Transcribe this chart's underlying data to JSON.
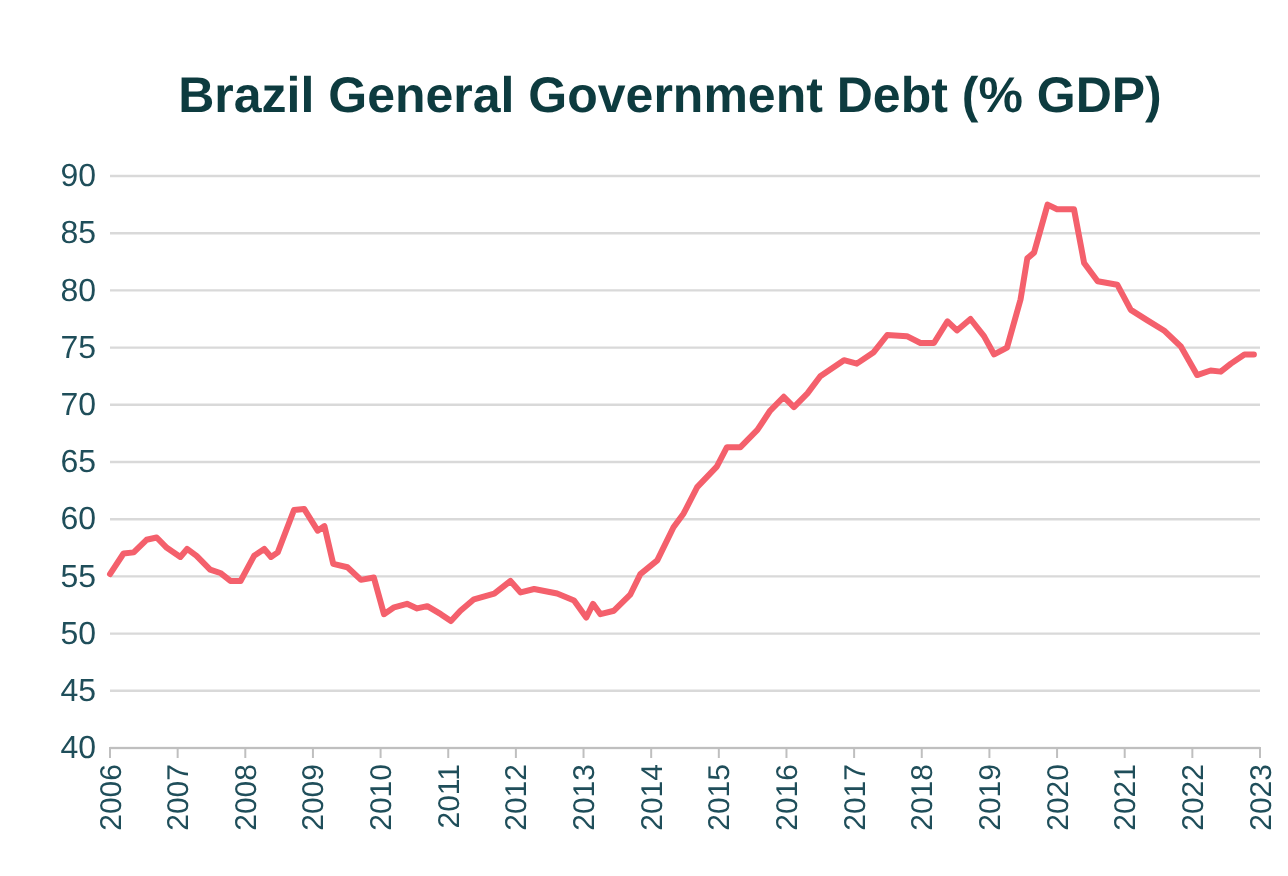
{
  "chart_data": {
    "type": "line",
    "title": "Brazil General Government Debt (% GDP)",
    "series": [
      {
        "color": "#f4606c",
        "x": [
          2006.0,
          2006.2,
          2006.35,
          2006.54,
          2006.69,
          2006.84,
          2007.04,
          2007.14,
          2007.28,
          2007.48,
          2007.63,
          2007.78,
          2007.93,
          2008.13,
          2008.28,
          2008.38,
          2008.48,
          2008.72,
          2008.87,
          2009.07,
          2009.17,
          2009.3,
          2009.51,
          2009.71,
          2009.9,
          2010.05,
          2010.2,
          2010.39,
          2010.54,
          2010.69,
          2010.89,
          2011.04,
          2011.18,
          2011.38,
          2011.68,
          2011.92,
          2012.07,
          2012.27,
          2012.61,
          2012.86,
          2013.04,
          2013.14,
          2013.25,
          2013.45,
          2013.69,
          2013.84,
          2014.09,
          2014.33,
          2014.48,
          2014.68,
          2014.97,
          2015.12,
          2015.32,
          2015.57,
          2015.76,
          2015.96,
          2016.11,
          2016.31,
          2016.5,
          2016.85,
          2017.04,
          2017.29,
          2017.49,
          2017.78,
          2017.98,
          2018.18,
          2018.38,
          2018.52,
          2018.72,
          2018.92,
          2019.07,
          2019.26,
          2019.46,
          2019.56,
          2019.66,
          2019.86,
          2020.0,
          2020.25,
          2020.4,
          2020.6,
          2020.89,
          2021.09,
          2021.33,
          2021.58,
          2021.83,
          2022.07,
          2022.27,
          2022.42,
          2022.57,
          2022.77,
          2022.91
        ],
        "values": [
          55.2,
          57.0,
          57.1,
          58.2,
          58.4,
          57.5,
          56.7,
          57.4,
          56.8,
          55.6,
          55.3,
          54.6,
          54.6,
          56.8,
          57.4,
          56.7,
          57.1,
          60.8,
          60.9,
          59.0,
          59.4,
          56.1,
          55.8,
          54.7,
          54.9,
          51.7,
          52.3,
          52.6,
          52.2,
          52.4,
          51.7,
          51.1,
          52.0,
          53.0,
          53.5,
          54.6,
          53.6,
          53.9,
          53.5,
          52.9,
          51.4,
          52.6,
          51.7,
          52.0,
          53.4,
          55.2,
          56.4,
          59.3,
          60.5,
          62.8,
          64.6,
          66.3,
          66.3,
          67.8,
          69.5,
          70.7,
          69.8,
          71.0,
          72.5,
          73.9,
          73.6,
          74.6,
          76.1,
          76.0,
          75.4,
          75.4,
          77.3,
          76.5,
          77.5,
          76.0,
          74.4,
          75.0,
          79.2,
          82.8,
          83.3,
          87.5,
          87.1,
          87.1,
          82.4,
          80.8,
          80.5,
          78.3,
          77.4,
          76.5,
          75.1,
          72.6,
          73.0,
          72.9,
          73.6,
          74.4,
          74.4
        ]
      }
    ],
    "xlim": [
      2006,
      2023
    ],
    "xticks": [
      2006,
      2007,
      2008,
      2009,
      2010,
      2011,
      2012,
      2013,
      2014,
      2015,
      2016,
      2017,
      2018,
      2019,
      2020,
      2021,
      2022,
      2023
    ],
    "ylim": [
      40,
      90
    ],
    "yticks": [
      40,
      45,
      50,
      55,
      60,
      65,
      70,
      75,
      80,
      85,
      90
    ],
    "grid": "y",
    "marker": "none",
    "line_style": "solid"
  }
}
